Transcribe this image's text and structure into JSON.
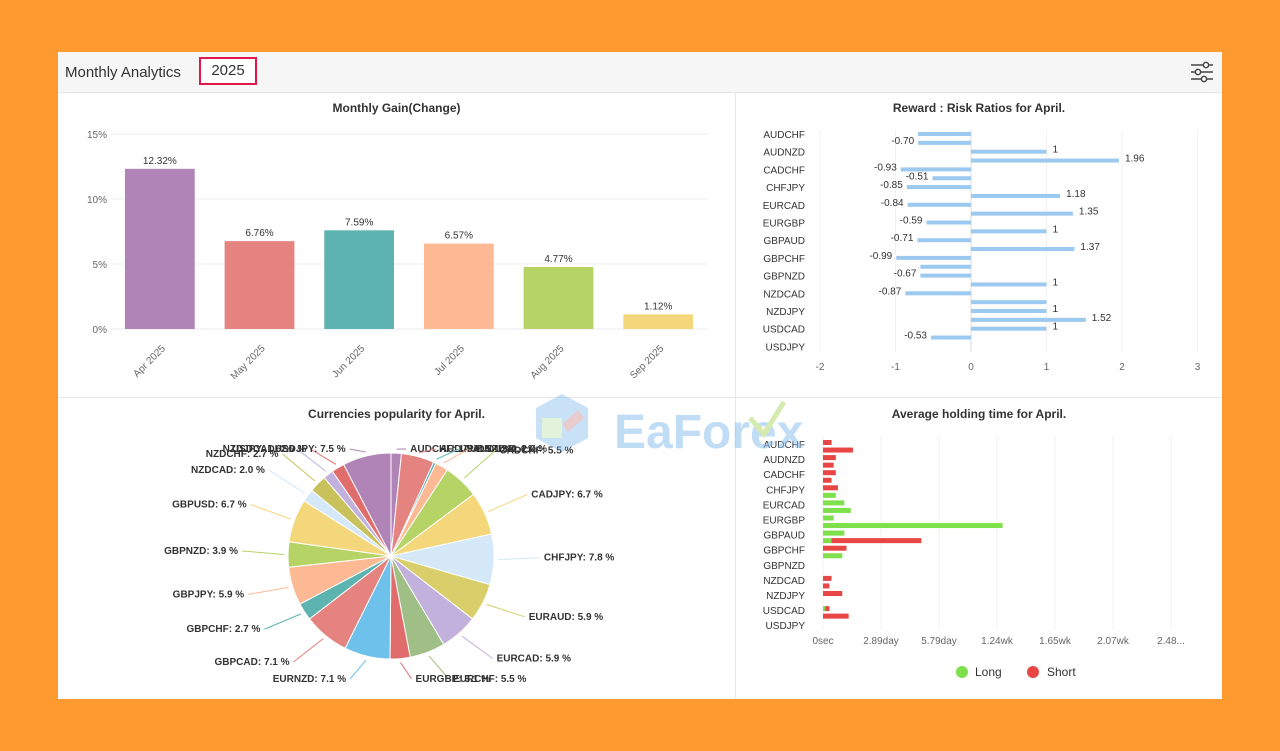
{
  "header": {
    "title": "Monthly Analytics",
    "year": "2025"
  },
  "icons": {
    "filter": "sliders-icon"
  },
  "watermark": {
    "text": "EaForex"
  },
  "legend": {
    "long": "Long",
    "short": "Short",
    "long_color": "#7ee04a",
    "short_color": "#e84545"
  },
  "chart_data": [
    {
      "type": "bar",
      "title": "Monthly Gain(Change)",
      "categories": [
        "Apr 2025",
        "May 2025",
        "Jun 2025",
        "Jul 2025",
        "Aug 2025",
        "Sep 2025"
      ],
      "values": [
        12.32,
        6.76,
        7.59,
        6.57,
        4.77,
        1.12
      ],
      "labels": [
        "12.32%",
        "6.76%",
        "7.59%",
        "6.57%",
        "4.77%",
        "1.12%"
      ],
      "colors": [
        "#b084b6",
        "#e4837f",
        "#5cb3b0",
        "#fcb993",
        "#b5d465",
        "#f4d77a"
      ],
      "yticks": [
        "0%",
        "5%",
        "10%",
        "15%"
      ],
      "ylim": [
        0,
        15
      ]
    },
    {
      "type": "bar",
      "title": "Reward : Risk Ratios for April.",
      "categories": [
        "AUDCHF",
        "AUDNZD",
        "CADCHF",
        "CHFJPY",
        "EURCAD",
        "EURGBP",
        "GBPAUD",
        "GBPCHF",
        "GBPNZD",
        "NZDCAD",
        "NZDJPY",
        "USDCAD",
        "USDJPY"
      ],
      "bars": [
        -0.7,
        -0.7,
        1,
        1.96,
        -0.93,
        -0.51,
        -0.85,
        1.18,
        -0.84,
        1.35,
        -0.59,
        1,
        -0.71,
        1.37,
        -0.99,
        -0.67,
        -0.67,
        1,
        -0.87,
        1,
        1,
        1.52,
        1,
        -0.53
      ],
      "annotations": [
        {
          "text": "-0.70",
          "v": -0.7,
          "slot": 1
        },
        {
          "text": "1",
          "v": 1,
          "slot": 2
        },
        {
          "text": "1.96",
          "v": 1.96,
          "slot": 3
        },
        {
          "text": "-0.93",
          "v": -0.93,
          "slot": 4
        },
        {
          "text": "-0.51",
          "v": -0.51,
          "slot": 5
        },
        {
          "text": "-0.85",
          "v": -0.85,
          "slot": 6
        },
        {
          "text": "1.18",
          "v": 1.18,
          "slot": 7
        },
        {
          "text": "-0.84",
          "v": -0.84,
          "slot": 8
        },
        {
          "text": "1.35",
          "v": 1.35,
          "slot": 9
        },
        {
          "text": "-0.59",
          "v": -0.59,
          "slot": 10
        },
        {
          "text": "1",
          "v": 1,
          "slot": 11
        },
        {
          "text": "-0.71",
          "v": -0.71,
          "slot": 12
        },
        {
          "text": "1.37",
          "v": 1.37,
          "slot": 13
        },
        {
          "text": "-0.99",
          "v": -0.99,
          "slot": 14
        },
        {
          "text": "-0.67",
          "v": -0.67,
          "slot": 16
        },
        {
          "text": "1",
          "v": 1,
          "slot": 17
        },
        {
          "text": "-0.87",
          "v": -0.87,
          "slot": 18
        },
        {
          "text": "1",
          "v": 1,
          "slot": 20
        },
        {
          "text": "1.52",
          "v": 1.52,
          "slot": 21
        },
        {
          "text": "1",
          "v": 1,
          "slot": 22
        },
        {
          "text": "-0.53",
          "v": -0.53,
          "slot": 23
        }
      ],
      "xticks": [
        -2,
        -1,
        0,
        1,
        2,
        3
      ],
      "xlim": [
        -2,
        3
      ],
      "color": "#9cc9ef"
    },
    {
      "type": "pie",
      "title": "Currencies popularity for April.",
      "slices": [
        {
          "label": "AUDCHF: 1.6 %",
          "value": 1.6,
          "color": "#b084b6"
        },
        {
          "label": "AUDJPY: 5.1 %",
          "value": 5.1,
          "color": "#e4837f"
        },
        {
          "label": "AUDNZD: 0.4 %",
          "value": 0.4,
          "color": "#5cb3b0"
        },
        {
          "label": "AUDUSD: 2.0 %",
          "value": 2.0,
          "color": "#fcb993"
        },
        {
          "label": "CADCHF: 5.5 %",
          "value": 5.5,
          "color": "#b5d465"
        },
        {
          "label": "CADJPY: 6.7 %",
          "value": 6.7,
          "color": "#f4d77a"
        },
        {
          "label": "CHFJPY: 7.8 %",
          "value": 7.8,
          "color": "#d5e8f8"
        },
        {
          "label": "EURAUD: 5.9 %",
          "value": 5.9,
          "color": "#d8cf6a"
        },
        {
          "label": "EURCAD: 5.9 %",
          "value": 5.9,
          "color": "#c3b1dd"
        },
        {
          "label": "EURCHF: 5.5 %",
          "value": 5.5,
          "color": "#9fbf86"
        },
        {
          "label": "EURGBP: 3.1 %",
          "value": 3.1,
          "color": "#e06c6c"
        },
        {
          "label": "EURNZD: 7.1 %",
          "value": 7.1,
          "color": "#6ec1ea"
        },
        {
          "label": "GBPCAD: 7.1 %",
          "value": 7.1,
          "color": "#e4837f"
        },
        {
          "label": "GBPCHF: 2.7 %",
          "value": 2.7,
          "color": "#5cb3b0"
        },
        {
          "label": "GBPJPY: 5.9 %",
          "value": 5.9,
          "color": "#fcb993"
        },
        {
          "label": "GBPNZD: 3.9 %",
          "value": 3.9,
          "color": "#b5d465"
        },
        {
          "label": "GBPUSD: 6.7 %",
          "value": 6.7,
          "color": "#f4d77a"
        },
        {
          "label": "NZDCAD: 2.0 %",
          "value": 2.0,
          "color": "#d5e8f8"
        },
        {
          "label": "NZDCHF: 2.7 %",
          "value": 2.7,
          "color": "#c9c25c"
        },
        {
          "label": "NZDJPY: 1.6 %",
          "value": 1.6,
          "color": "#c3b1dd"
        },
        {
          "label": "USDCAD: 2.0 %",
          "value": 2.0,
          "color": "#e06c6c"
        },
        {
          "label": "USDJPY: 7.5 %",
          "value": 7.5,
          "color": "#b084b6"
        }
      ]
    },
    {
      "type": "bar",
      "title": "Average holding time for April.",
      "categories": [
        "AUDCHF",
        "AUDNZD",
        "CADCHF",
        "CHFJPY",
        "EURCAD",
        "EURGBP",
        "GBPAUD",
        "GBPCHF",
        "GBPNZD",
        "NZDCAD",
        "NZDJPY",
        "USDCAD",
        "USDJPY"
      ],
      "long_days": [
        0,
        0,
        0,
        0,
        0,
        0,
        0,
        0.6,
        1.0,
        1.3,
        0.5,
        8.4,
        1.0,
        0.4,
        0,
        0.9,
        0,
        0,
        0,
        0,
        0,
        0,
        0.1,
        0
      ],
      "short_days": [
        0.4,
        1.4,
        0.6,
        0.5,
        0.6,
        0.4,
        0.7,
        0,
        0,
        0,
        0,
        0,
        0,
        4.2,
        1.1,
        0,
        0,
        0,
        0.4,
        0.3,
        0.9,
        0,
        0.2,
        1.2
      ],
      "xticks": [
        "0sec",
        "2.89day",
        "5.79day",
        "1.24wk",
        "1.65wk",
        "2.07wk",
        "2.48..."
      ],
      "xmax_days": 17.4
    }
  ]
}
